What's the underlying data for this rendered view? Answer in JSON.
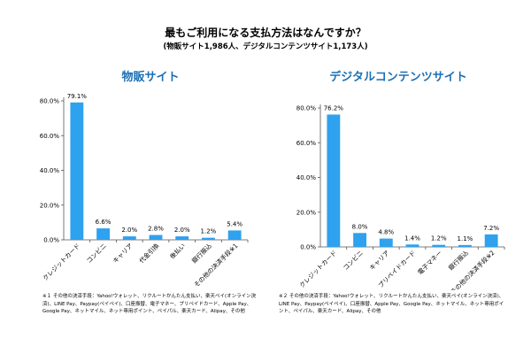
{
  "header": {
    "title": "最もご利用になる支払方法はなんですか？",
    "subtitle": "(物販サイト1,986人、デジタルコンテンツサイト1,173人)"
  },
  "colors": {
    "bar": "#2ea1ef",
    "chart_title": "#1b6fb3",
    "axis": "#555555"
  },
  "chart_data": [
    {
      "type": "bar",
      "title": "物販サイト",
      "categories": [
        "クレジットカード",
        "コンビニ",
        "キャリア",
        "代金引換",
        "後払い",
        "銀行振込",
        "その他の決済手段※1"
      ],
      "values": [
        79.1,
        6.6,
        2.0,
        2.8,
        2.0,
        1.2,
        5.4
      ],
      "labels": [
        "79.1%",
        "6.6%",
        "2.0%",
        "2.8%",
        "2.0%",
        "1.2%",
        "5.4%"
      ],
      "yticks": [
        "0.0%",
        "20.0%",
        "40.0%",
        "60.0%",
        "80.0%"
      ],
      "ylim": [
        0,
        80
      ],
      "xlabel": "",
      "ylabel": "",
      "grid": false,
      "note": "※１ その他の決済手段：Yahoo!ウォレット、リクルートかんたん支払い、楽天ペイ(オンライン決済)、LINE Pay、Paypay(ペイペイ)、口座振替、電子マネー、プリペイドカード、Apple Pay、Google Pay、ネットマイル、ネット専用ポイント、ペイパル、楽天カード、Alipay、その他"
    },
    {
      "type": "bar",
      "title": "デジタルコンテンツサイト",
      "categories": [
        "クレジットカード",
        "コンビニ",
        "キャリア",
        "プリペイドカード",
        "電子マネー",
        "銀行振込",
        "その他の決済手段※2"
      ],
      "values": [
        76.2,
        8.0,
        4.8,
        1.4,
        1.2,
        1.1,
        7.2
      ],
      "labels": [
        "76.2%",
        "8.0%",
        "4.8%",
        "1.4%",
        "1.2%",
        "1.1%",
        "7.2%"
      ],
      "yticks": [
        "0.0%",
        "20.0%",
        "40.0%",
        "60.0%",
        "80.0%"
      ],
      "ylim": [
        0,
        80
      ],
      "xlabel": "",
      "ylabel": "",
      "grid": false,
      "note": "※２ その他の決済手段：Yahoo!ウォレット、リクルートかんたん支払い、楽天ペイ(オンライン決済)、LINE Pay、Paypay(ペイペイ)、口座振替、Apple Pay、Google Pay、ネットマイル、ネット専用ポイント、ペイパル、楽天カード、Alipay、その他"
    }
  ]
}
